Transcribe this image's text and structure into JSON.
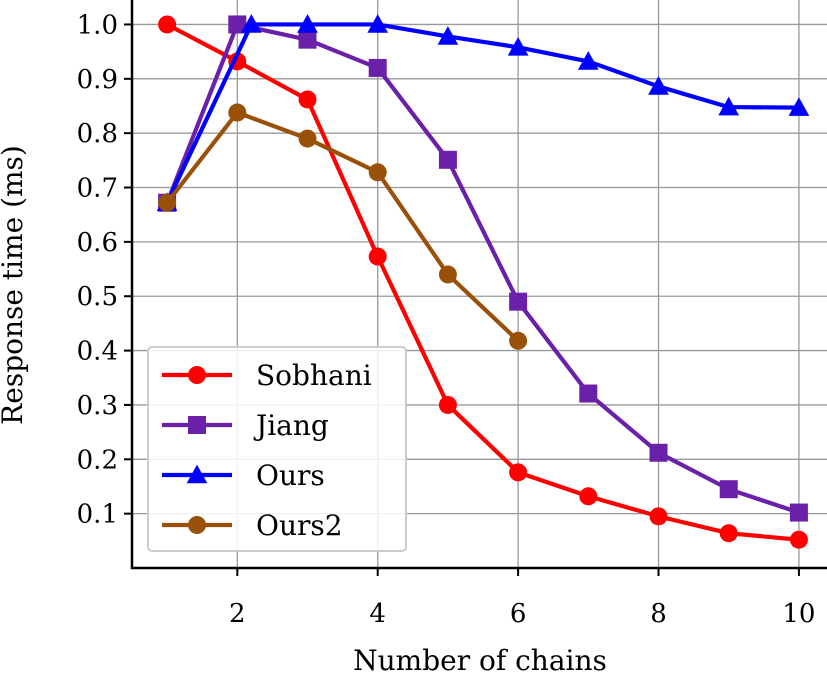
{
  "chart_data": {
    "type": "line",
    "title": "",
    "xlabel": "Number of chains",
    "ylabel": "Response time (ms)",
    "xlim": [
      0.5,
      10.4
    ],
    "ylim": [
      0.0,
      1.045
    ],
    "xticks": [
      2,
      4,
      6,
      8,
      10
    ],
    "yticks": [
      0.1,
      0.2,
      0.3,
      0.4,
      0.5,
      0.6,
      0.7,
      0.8,
      0.9,
      1.0
    ],
    "grid": true,
    "legend_position": "lower-left",
    "series": [
      {
        "name": "Sobhani",
        "color": "#ff0000",
        "marker": "circle",
        "x": [
          1,
          2,
          3,
          4,
          5,
          6,
          7,
          8,
          9,
          10
        ],
        "y": [
          1.0,
          0.932,
          0.862,
          0.573,
          0.3,
          0.176,
          0.132,
          0.095,
          0.064,
          0.052
        ]
      },
      {
        "name": "Jiang",
        "color": "#6a20a8",
        "marker": "square",
        "x": [
          1,
          2,
          3,
          4,
          5,
          6,
          7,
          8,
          9,
          10
        ],
        "y": [
          0.672,
          1.0,
          0.972,
          0.92,
          0.751,
          0.49,
          0.321,
          0.212,
          0.145,
          0.102
        ]
      },
      {
        "name": "Ours",
        "color": "#0000ff",
        "marker": "triangle",
        "x": [
          1,
          2.2,
          3,
          4,
          5,
          6,
          7,
          8,
          9,
          10
        ],
        "y": [
          0.672,
          1.0,
          1.0,
          1.0,
          0.978,
          0.958,
          0.932,
          0.886,
          0.848,
          0.847
        ]
      },
      {
        "name": "Ours2",
        "color": "#99510a",
        "marker": "circle",
        "x": [
          1,
          2,
          3,
          4,
          5,
          6
        ],
        "y": [
          0.672,
          0.838,
          0.79,
          0.728,
          0.54,
          0.418
        ]
      }
    ]
  }
}
